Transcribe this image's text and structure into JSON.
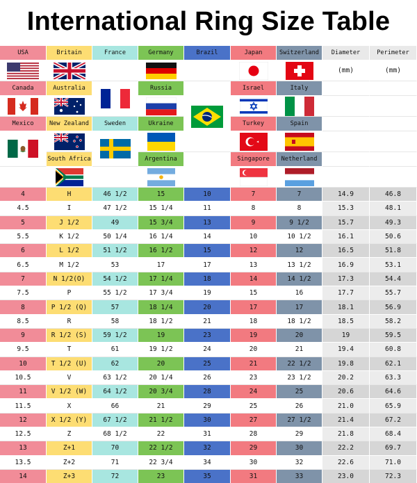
{
  "title": "International Ring Size Table",
  "colors": {
    "usa": "#f18c98",
    "britain": "#fddd73",
    "france": "#a8e6e0",
    "germany": "#7cc455",
    "brazil": "#4a72c8",
    "japan": "#f27a80",
    "switzerland": "#7f93a9",
    "measure": "#ececec",
    "row_dark_measure": "#d6d6d6"
  },
  "header": {
    "usa": "USA",
    "britain": "Britain",
    "france": "France",
    "germany": "Germany",
    "brazil": "Brazil",
    "japan": "Japan",
    "switzerland": "Switzerland",
    "diameter": "Diameter",
    "perimeter": "Perimeter",
    "diameter_unit": "(mm)",
    "perimeter_unit": "(mm)",
    "canada": "Canada",
    "australia": "Australia",
    "russia": "Russia",
    "israel": "Israel",
    "italy": "Italy",
    "mexico": "Mexico",
    "new_zealand": "New Zealand",
    "sweden": "Sweden",
    "ukraine": "Ukraine",
    "turkey": "Turkey",
    "spain": "Spain",
    "south_africa": "South Africa",
    "argentina": "Argentina",
    "singapore": "Singapore",
    "netherland": "Netherland"
  },
  "flags": [
    "usa-flag",
    "britain-flag",
    "france-flag",
    "germany-flag",
    "brazil-flag",
    "japan-flag",
    "switzerland-flag",
    "canada-flag",
    "australia-flag",
    "russia-flag",
    "israel-flag",
    "italy-flag",
    "mexico-flag",
    "new-zealand-flag",
    "sweden-flag",
    "ukraine-flag",
    "turkey-flag",
    "spain-flag",
    "south-africa-flag",
    "argentina-flag",
    "singapore-flag",
    "netherland-flag"
  ],
  "rows": [
    [
      "4",
      "H",
      "46 1/2",
      "15",
      "10",
      "7",
      "7",
      "14.9",
      "46.8"
    ],
    [
      "4.5",
      "I",
      "47 1/2",
      "15 1/4",
      "11",
      "8",
      "8",
      "15.3",
      "48.1"
    ],
    [
      "5",
      "J 1/2",
      "49",
      "15 3/4",
      "13",
      "9",
      "9 1/2",
      "15.7",
      "49.3"
    ],
    [
      "5.5",
      "K 1/2",
      "50 1/4",
      "16 1/4",
      "14",
      "10",
      "10 1/2",
      "16.1",
      "50.6"
    ],
    [
      "6",
      "L 1/2",
      "51 1/2",
      "16 1/2",
      "15",
      "12",
      "12",
      "16.5",
      "51.8"
    ],
    [
      "6.5",
      "M 1/2",
      "53",
      "17",
      "17",
      "13",
      "13 1/2",
      "16.9",
      "53.1"
    ],
    [
      "7",
      "N 1/2(O)",
      "54 1/2",
      "17 1/4",
      "18",
      "14",
      "14 1/2",
      "17.3",
      "54.4"
    ],
    [
      "7.5",
      "P",
      "55 1/2",
      "17 3/4",
      "19",
      "15",
      "16",
      "17.7",
      "55.7"
    ],
    [
      "8",
      "P 1/2 (Q)",
      "57",
      "18 1/4",
      "20",
      "17",
      "17",
      "18.1",
      "56.9"
    ],
    [
      "8.5",
      "R",
      "58",
      "18 1/2",
      "21",
      "18",
      "18 1/2",
      "18.5",
      "58.2"
    ],
    [
      "9",
      "R 1/2 (S)",
      "59 1/2",
      "19",
      "23",
      "19",
      "20",
      "19",
      "59.5"
    ],
    [
      "9.5",
      "T",
      "61",
      "19 1/2",
      "24",
      "20",
      "21",
      "19.4",
      "60.8"
    ],
    [
      "10",
      "T 1/2 (U)",
      "62",
      "20",
      "25",
      "21",
      "22 1/2",
      "19.8",
      "62.1"
    ],
    [
      "10.5",
      "V",
      "63 1/2",
      "20 1/4",
      "26",
      "23",
      "23 1/2",
      "20.2",
      "63.3"
    ],
    [
      "11",
      "V 1/2 (W)",
      "64 1/2",
      "20 3/4",
      "28",
      "24",
      "25",
      "20.6",
      "64.6"
    ],
    [
      "11.5",
      "X",
      "66",
      "21",
      "29",
      "25",
      "26",
      "21.0",
      "65.9"
    ],
    [
      "12",
      "X 1/2 (Y)",
      "67 1/2",
      "21 1/2",
      "30",
      "27",
      "27 1/2",
      "21.4",
      "67.2"
    ],
    [
      "12.5",
      "Z",
      "68 1/2",
      "22",
      "31",
      "28",
      "29",
      "21.8",
      "68.4"
    ],
    [
      "13",
      "Z+1",
      "70",
      "22 1/2",
      "32",
      "29",
      "30",
      "22.2",
      "69.7"
    ],
    [
      "13.5",
      "Z+2",
      "71",
      "22 3/4",
      "34",
      "30",
      "32",
      "22.6",
      "71.0"
    ],
    [
      "14",
      "Z+3",
      "72",
      "23",
      "35",
      "31",
      "33",
      "23.0",
      "72.3"
    ]
  ]
}
